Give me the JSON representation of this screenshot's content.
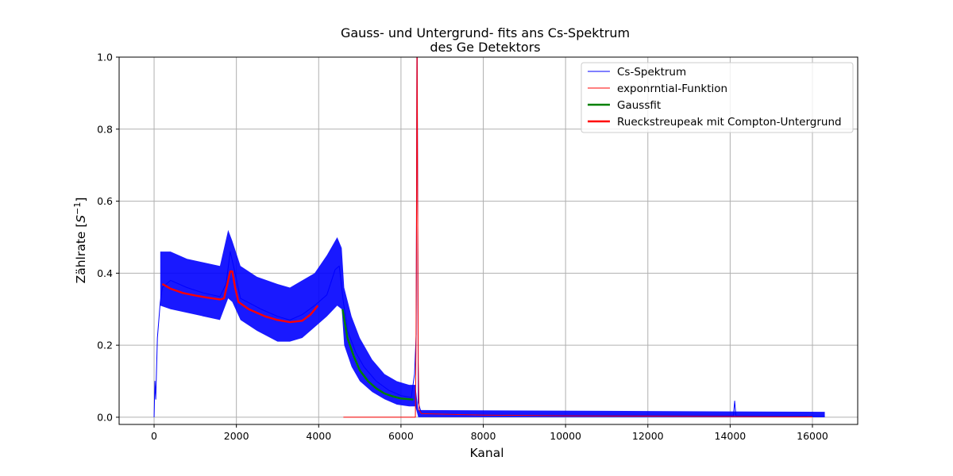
{
  "chart_data": {
    "type": "line",
    "title_line1": "Gauss- und Untergrund- fits ans Cs-Spektrum",
    "title_line2": "des Ge Detektors",
    "xlabel": "Kanal",
    "ylabel_prefix": "Zählrate [",
    "ylabel_var": "S",
    "ylabel_exp": "−1",
    "ylabel_suffix": "]",
    "xlim": [
      -850,
      17100
    ],
    "ylim": [
      -0.02,
      1.0
    ],
    "grid": true,
    "legend_position": "top-right",
    "x_ticks": [
      0,
      2000,
      4000,
      6000,
      8000,
      10000,
      12000,
      14000,
      16000
    ],
    "x_tick_labels": [
      "0",
      "2000",
      "4000",
      "6000",
      "8000",
      "10000",
      "12000",
      "14000",
      "16000"
    ],
    "y_ticks": [
      0.0,
      0.2,
      0.4,
      0.6,
      0.8,
      1.0
    ],
    "y_tick_labels": [
      "0.0",
      "0.2",
      "0.4",
      "0.6",
      "0.8",
      "1.0"
    ],
    "series": [
      {
        "name": "Cs-Spektrum",
        "color": "#0000ff",
        "style": "thin",
        "points": [
          [
            0,
            0.0
          ],
          [
            20,
            0.1
          ],
          [
            40,
            0.05
          ],
          [
            80,
            0.22
          ],
          [
            150,
            0.32
          ],
          [
            200,
            0.36
          ],
          [
            400,
            0.38
          ],
          [
            800,
            0.36
          ],
          [
            1200,
            0.345
          ],
          [
            1600,
            0.335
          ],
          [
            1750,
            0.37
          ],
          [
            1850,
            0.46
          ],
          [
            1950,
            0.41
          ],
          [
            2100,
            0.33
          ],
          [
            2600,
            0.3
          ],
          [
            3000,
            0.28
          ],
          [
            3300,
            0.27
          ],
          [
            3600,
            0.285
          ],
          [
            3900,
            0.31
          ],
          [
            4200,
            0.34
          ],
          [
            4400,
            0.41
          ],
          [
            4500,
            0.42
          ],
          [
            4600,
            0.32
          ],
          [
            4700,
            0.24
          ],
          [
            4900,
            0.18
          ],
          [
            5100,
            0.14
          ],
          [
            5400,
            0.1
          ],
          [
            5700,
            0.075
          ],
          [
            6000,
            0.06
          ],
          [
            6250,
            0.055
          ],
          [
            6330,
            0.12
          ],
          [
            6370,
            0.23
          ],
          [
            6390,
            1.2
          ],
          [
            6420,
            0.04
          ],
          [
            6500,
            0.01
          ],
          [
            8000,
            0.006
          ],
          [
            10000,
            0.005
          ],
          [
            12000,
            0.004
          ],
          [
            14080,
            0.004
          ],
          [
            14110,
            0.045
          ],
          [
            14140,
            0.004
          ],
          [
            16000,
            0.002
          ],
          [
            16300,
            0.002
          ]
        ]
      },
      {
        "name": "exponrntial-Funktion",
        "color": "#ff0000",
        "style": "thin",
        "points": [
          [
            4600,
            0.0
          ],
          [
            6350,
            0.0
          ],
          [
            6365,
            0.18
          ],
          [
            6380,
            0.6
          ],
          [
            6390,
            1.1
          ],
          [
            6405,
            0.6
          ],
          [
            6420,
            0.15
          ],
          [
            6440,
            0.02
          ],
          [
            6500,
            0.01
          ],
          [
            8000,
            0.006
          ],
          [
            10000,
            0.004
          ],
          [
            12000,
            0.003
          ],
          [
            14000,
            0.002
          ],
          [
            16000,
            0.001
          ]
        ]
      },
      {
        "name": "Gaussfit",
        "color": "#008000",
        "style": "thick",
        "points": [
          [
            4580,
            0.3
          ],
          [
            4700,
            0.22
          ],
          [
            4850,
            0.17
          ],
          [
            5000,
            0.13
          ],
          [
            5200,
            0.1
          ],
          [
            5400,
            0.08
          ],
          [
            5600,
            0.066
          ],
          [
            5800,
            0.058
          ],
          [
            6000,
            0.052
          ],
          [
            6200,
            0.05
          ],
          [
            6300,
            0.049
          ]
        ]
      },
      {
        "name": "Rueckstreupeak mit Compton-Untergrund",
        "color": "#ff0000",
        "style": "thick",
        "points": [
          [
            200,
            0.37
          ],
          [
            400,
            0.357
          ],
          [
            700,
            0.345
          ],
          [
            1000,
            0.338
          ],
          [
            1300,
            0.332
          ],
          [
            1600,
            0.327
          ],
          [
            1700,
            0.33
          ],
          [
            1780,
            0.37
          ],
          [
            1850,
            0.405
          ],
          [
            1900,
            0.405
          ],
          [
            1970,
            0.36
          ],
          [
            2050,
            0.32
          ],
          [
            2300,
            0.3
          ],
          [
            2700,
            0.28
          ],
          [
            3000,
            0.27
          ],
          [
            3300,
            0.264
          ],
          [
            3600,
            0.268
          ],
          [
            3800,
            0.285
          ],
          [
            3980,
            0.31
          ]
        ]
      }
    ],
    "noise_band": {
      "series": "Cs-Spektrum",
      "points": [
        [
          150,
          0.31,
          0.46
        ],
        [
          400,
          0.3,
          0.46
        ],
        [
          800,
          0.29,
          0.44
        ],
        [
          1200,
          0.28,
          0.43
        ],
        [
          1600,
          0.27,
          0.42
        ],
        [
          1800,
          0.33,
          0.52
        ],
        [
          1900,
          0.32,
          0.49
        ],
        [
          2100,
          0.27,
          0.42
        ],
        [
          2500,
          0.24,
          0.39
        ],
        [
          3000,
          0.21,
          0.37
        ],
        [
          3300,
          0.21,
          0.36
        ],
        [
          3600,
          0.22,
          0.38
        ],
        [
          3900,
          0.25,
          0.4
        ],
        [
          4200,
          0.28,
          0.45
        ],
        [
          4450,
          0.31,
          0.5
        ],
        [
          4560,
          0.3,
          0.47
        ],
        [
          4620,
          0.2,
          0.36
        ],
        [
          4800,
          0.14,
          0.28
        ],
        [
          5000,
          0.1,
          0.22
        ],
        [
          5300,
          0.07,
          0.16
        ],
        [
          5600,
          0.05,
          0.12
        ],
        [
          5900,
          0.035,
          0.1
        ],
        [
          6200,
          0.03,
          0.09
        ],
        [
          6350,
          0.03,
          0.09
        ],
        [
          6420,
          0.0,
          0.02
        ],
        [
          16300,
          0.0,
          0.015
        ]
      ]
    }
  }
}
